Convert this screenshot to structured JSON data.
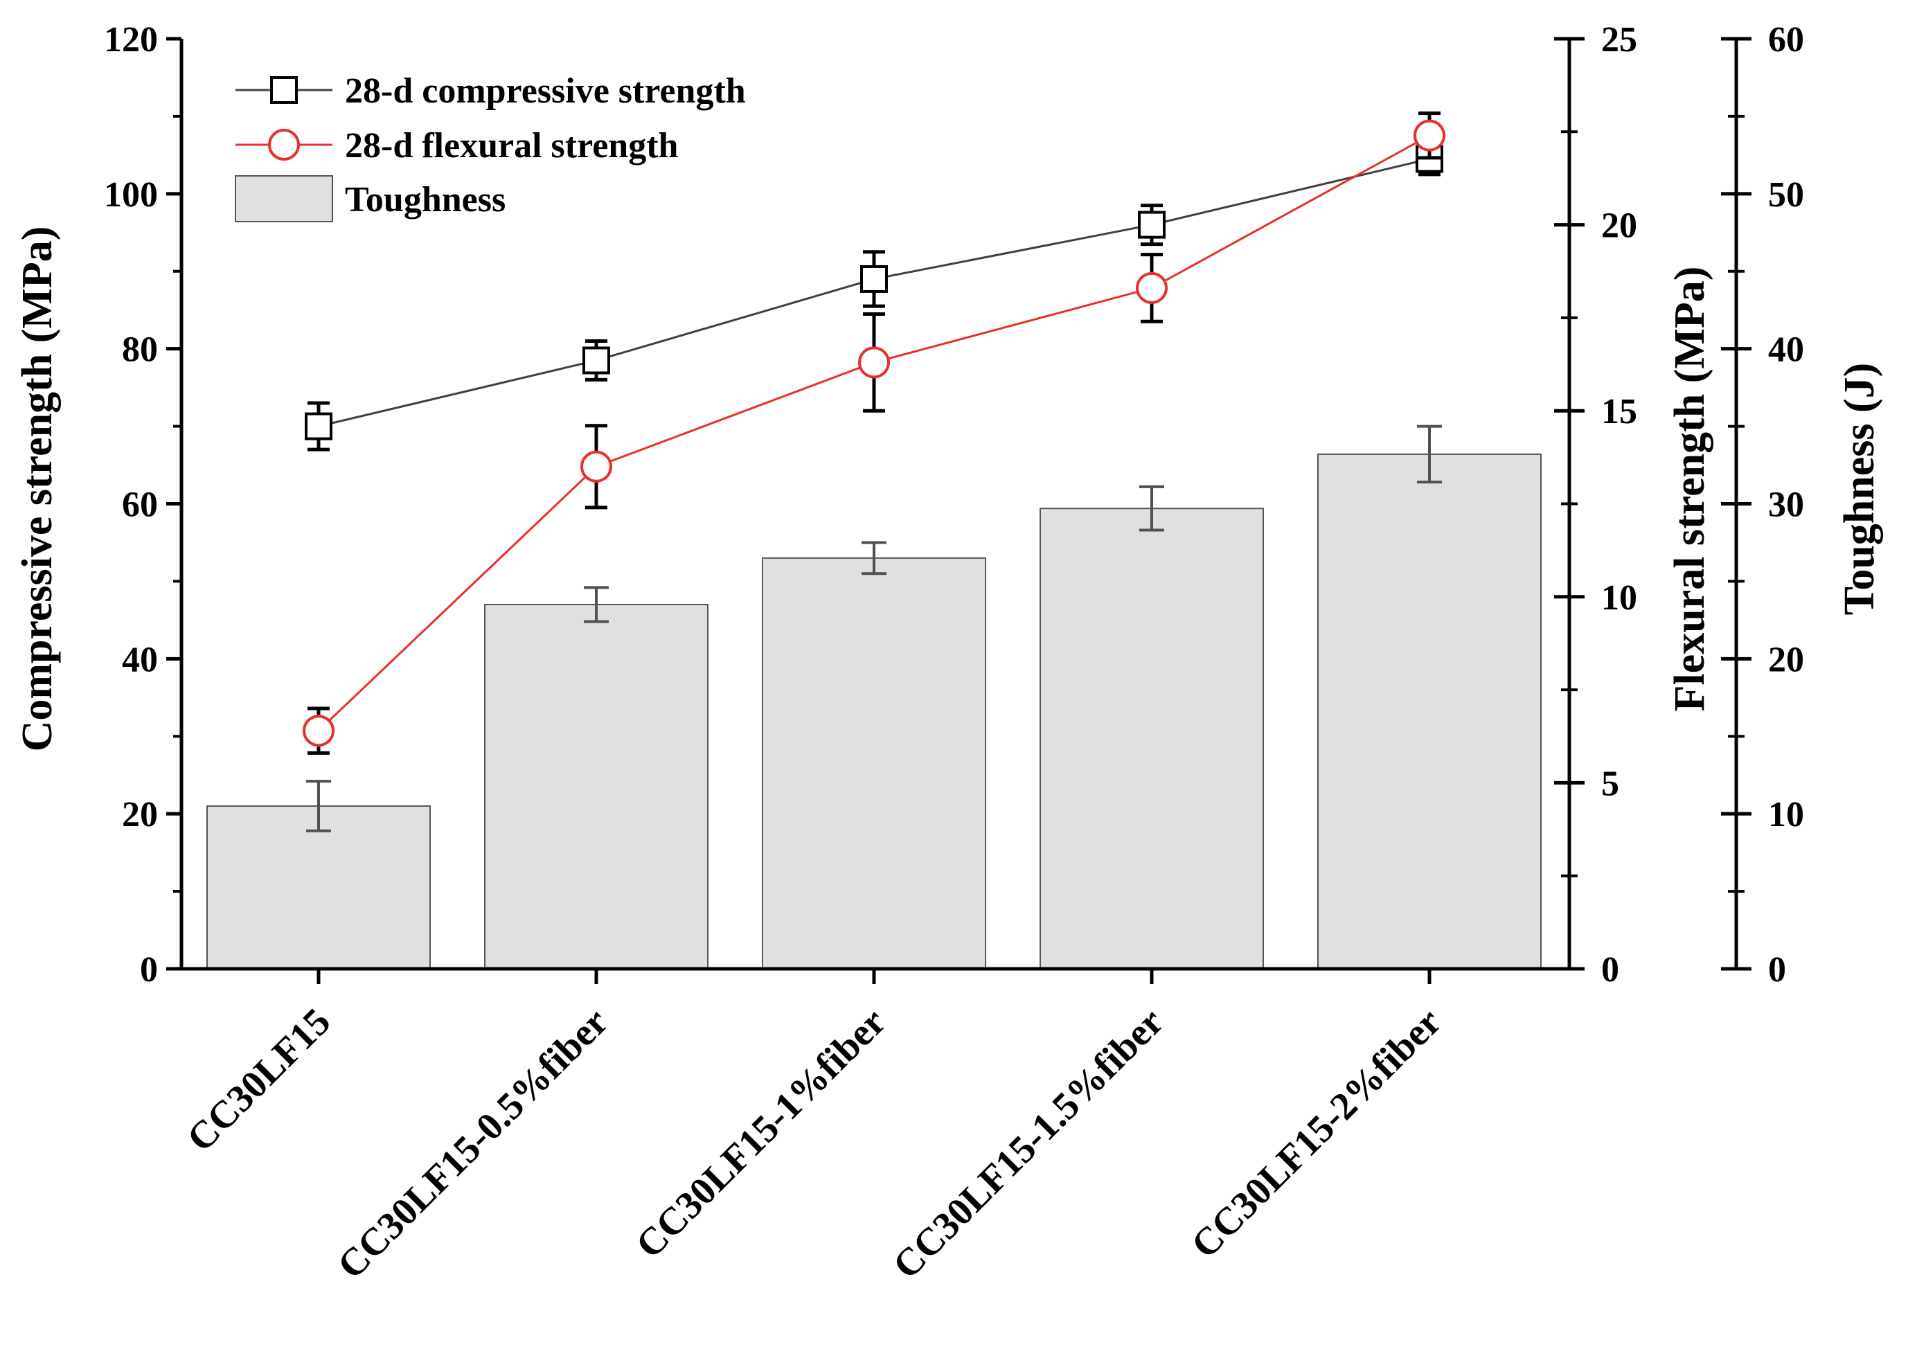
{
  "chart_data": {
    "type": "bar+line",
    "categories": [
      "CC30LF15",
      "CC30LF15-0.5%fiber",
      "CC30LF15-1%fiber",
      "CC30LF15-1.5%fiber",
      "CC30LF15-2%fiber"
    ],
    "series": [
      {
        "name": "28-d compressive strength",
        "kind": "line",
        "marker": "square",
        "axis": "left",
        "color": "#404040",
        "values": [
          70,
          78.5,
          89,
          96,
          104.5
        ],
        "errors": [
          3,
          2.5,
          3.5,
          2.5,
          2
        ]
      },
      {
        "name": "28-d flexural strength",
        "kind": "line",
        "marker": "circle",
        "axis": "right1",
        "color": "#e8302a",
        "values": [
          6.4,
          13.5,
          16.3,
          18.3,
          22.4
        ],
        "errors": [
          0.6,
          1.1,
          1.3,
          0.9,
          0.6
        ]
      },
      {
        "name": "Toughness",
        "kind": "bar",
        "axis": "right2",
        "color": "#e0e0e0",
        "values": [
          10.5,
          23.5,
          26.5,
          29.7,
          33.2
        ],
        "errors": [
          1.6,
          1.1,
          1.0,
          1.4,
          1.8
        ]
      }
    ],
    "axes": {
      "left": {
        "label": "Compressive strength (MPa)",
        "min": 0,
        "max": 120,
        "ticks": [
          "0",
          "20",
          "40",
          "60",
          "80",
          "100",
          "120"
        ]
      },
      "right1": {
        "label": "Flexural strength (MPa)",
        "min": 0,
        "max": 25,
        "ticks": [
          "0",
          "5",
          "10",
          "15",
          "20",
          "25"
        ]
      },
      "right2": {
        "label": "Toughness (J)",
        "min": 0,
        "max": 60,
        "ticks": [
          "0",
          "10",
          "20",
          "30",
          "40",
          "50",
          "60"
        ]
      }
    },
    "legend": {
      "position": "top-left",
      "entries": [
        "28-d compressive strength",
        "28-d flexural strength",
        "Toughness"
      ]
    }
  }
}
